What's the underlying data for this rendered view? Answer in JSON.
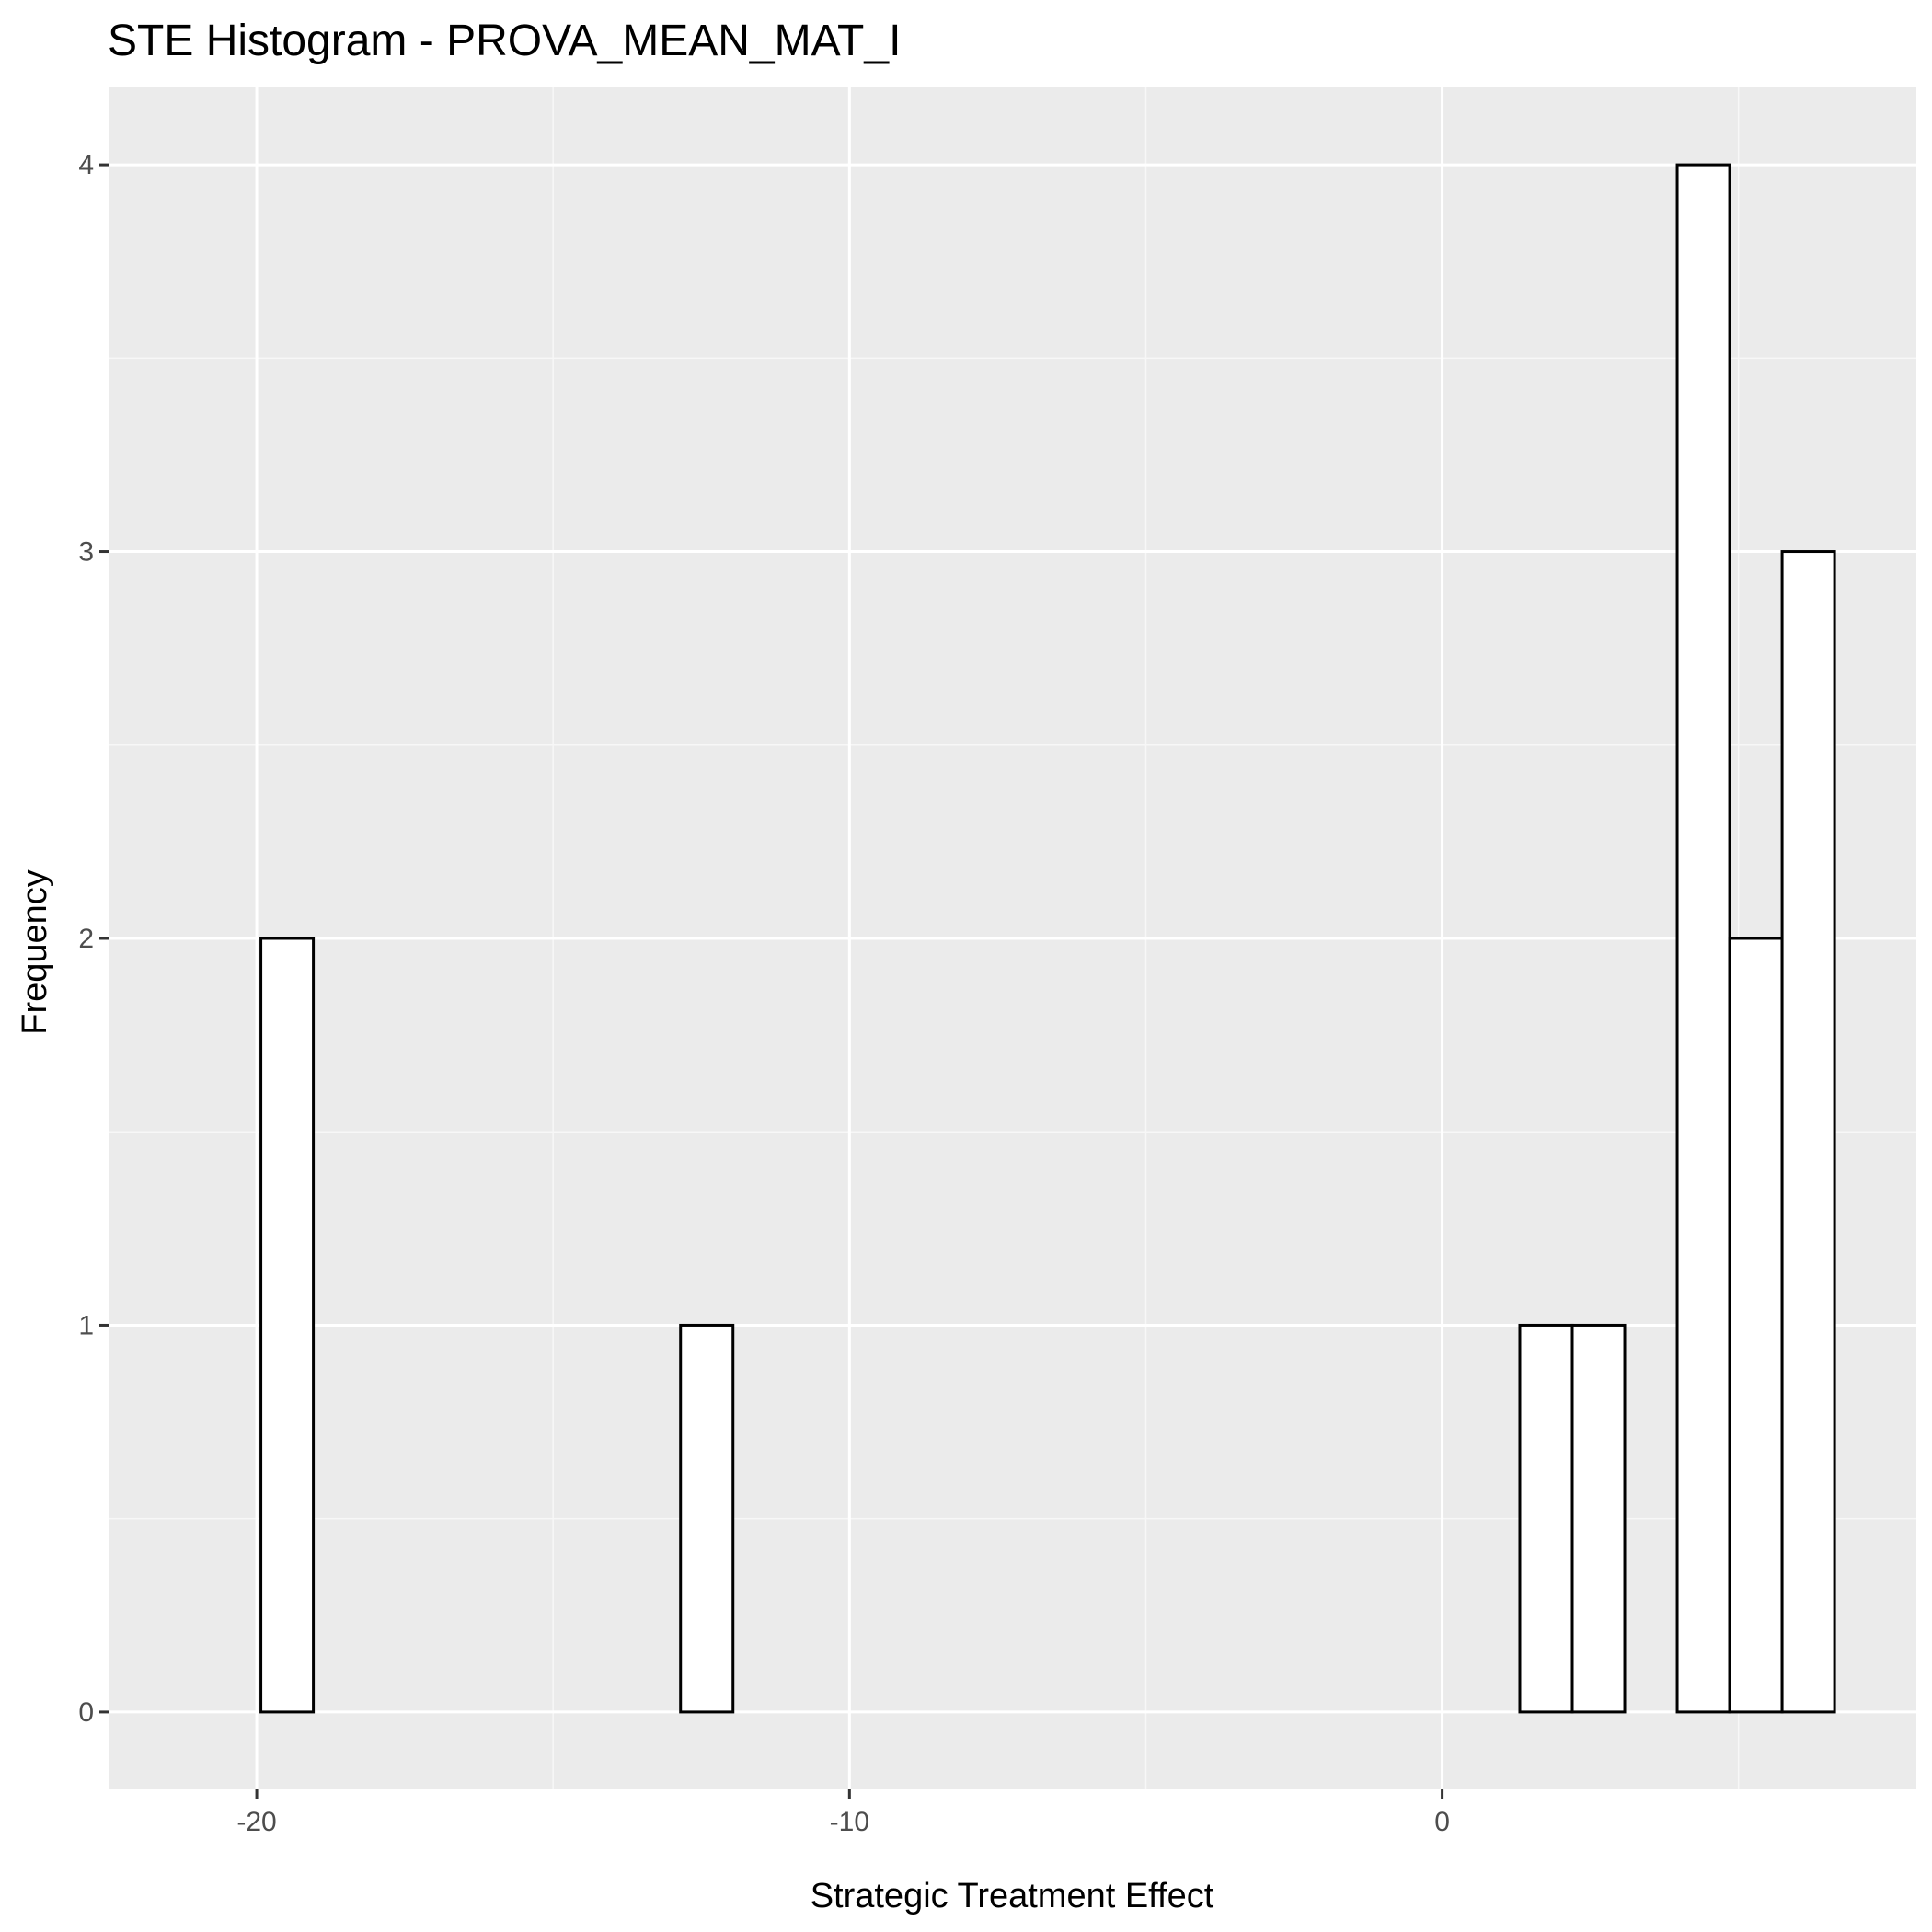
{
  "chart_data": {
    "type": "bar",
    "title": "STE Histogram -  PROVA_MEAN_MAT_I",
    "xlabel": "Strategic Treatment Effect",
    "ylabel": "Frequency",
    "xlim": [
      -22.5,
      8.0
    ],
    "ylim": [
      -0.2,
      4.2
    ],
    "x_ticks": [
      -20,
      -10,
      0
    ],
    "x_tick_labels": [
      "-20",
      "-10",
      "0"
    ],
    "x_minor_ticks": [
      -15,
      -5,
      5
    ],
    "y_ticks": [
      0,
      1,
      2,
      3,
      4
    ],
    "y_tick_labels": [
      "0",
      "1",
      "2",
      "3",
      "4"
    ],
    "y_minor_ticks": [
      0.5,
      1.5,
      2.5,
      3.5
    ],
    "grid": true,
    "bin_width": 0.885,
    "bins": [
      {
        "x0": -19.93,
        "x1": -19.045,
        "count": 2
      },
      {
        "x0": -19.045,
        "x1": -18.16,
        "count": 0
      },
      {
        "x0": -18.16,
        "x1": -17.275,
        "count": 0
      },
      {
        "x0": -17.275,
        "x1": -16.39,
        "count": 0
      },
      {
        "x0": -16.39,
        "x1": -15.505,
        "count": 0
      },
      {
        "x0": -15.505,
        "x1": -14.62,
        "count": 0
      },
      {
        "x0": -14.62,
        "x1": -13.735,
        "count": 0
      },
      {
        "x0": -13.735,
        "x1": -12.85,
        "count": 0
      },
      {
        "x0": -12.85,
        "x1": -11.965,
        "count": 1
      },
      {
        "x0": -11.965,
        "x1": -11.08,
        "count": 0
      },
      {
        "x0": -11.08,
        "x1": -10.195,
        "count": 0
      },
      {
        "x0": -10.195,
        "x1": -9.31,
        "count": 0
      },
      {
        "x0": -9.31,
        "x1": -8.425,
        "count": 0
      },
      {
        "x0": -8.425,
        "x1": -7.54,
        "count": 0
      },
      {
        "x0": -7.54,
        "x1": -6.655,
        "count": 0
      },
      {
        "x0": -6.655,
        "x1": -5.77,
        "count": 0
      },
      {
        "x0": -5.77,
        "x1": -4.885,
        "count": 0
      },
      {
        "x0": -4.885,
        "x1": -4.0,
        "count": 0
      },
      {
        "x0": -4.0,
        "x1": -3.115,
        "count": 0
      },
      {
        "x0": -3.115,
        "x1": -2.23,
        "count": 0
      },
      {
        "x0": -2.23,
        "x1": -1.345,
        "count": 0
      },
      {
        "x0": -1.345,
        "x1": -0.46,
        "count": 0
      },
      {
        "x0": -0.46,
        "x1": 0.425,
        "count": 0
      },
      {
        "x0": 0.425,
        "x1": 1.31,
        "count": 0
      },
      {
        "x0": 1.31,
        "x1": 2.195,
        "count": 1
      },
      {
        "x0": 2.195,
        "x1": 3.08,
        "count": 1
      },
      {
        "x0": 3.08,
        "x1": 3.965,
        "count": 0
      },
      {
        "x0": 3.965,
        "x1": 4.85,
        "count": 4
      },
      {
        "x0": 4.85,
        "x1": 5.735,
        "count": 2
      },
      {
        "x0": 5.735,
        "x1": 6.62,
        "count": 3
      }
    ],
    "colors": {
      "panel_background": "#ebebeb",
      "grid_major": "#ffffff",
      "grid_minor": "#f7f7f7",
      "bar_fill": "#ffffff",
      "bar_outline": "#000000",
      "tick_label": "#4d4d4d",
      "tick_mark": "#333333",
      "text": "#000000"
    }
  }
}
